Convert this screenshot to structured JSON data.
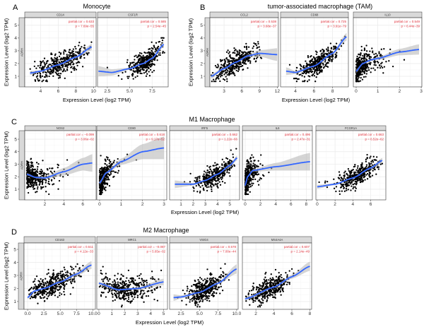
{
  "figure": {
    "x_axis_title": "Expression Level (log2 TPM)",
    "y_axis_title": "Expression Level (log2 TPM)",
    "row_strip_label": "ADRH",
    "colors": {
      "points": "#000000",
      "fit": "#3366ff",
      "ci_band": "#b3b3b3",
      "annotation": "#e0303a",
      "strip": "#d9d9d9"
    }
  },
  "chart_data": [
    {
      "panel_letter": "A",
      "title": "Monocyte",
      "type": "scatter",
      "ylabel": "Expression Level (log2 TPM)",
      "xlabel": "Expression Level (log2 TPM)",
      "ylim": [
        0.17,
        5.6
      ],
      "yticks": [
        1,
        2,
        3,
        4,
        5
      ],
      "grid": true,
      "facets": [
        {
          "gene": "CD14",
          "annotation": [
            "partial.cor = 0.633",
            "p = 7.69e−55"
          ],
          "xlim": [
            2.2,
            10.3
          ],
          "xticks": [
            "4",
            "6",
            "8",
            "10"
          ],
          "scatter": {
            "n": 380,
            "dist": "normal",
            "x_mean": 6.3,
            "x_sd": 1.5,
            "x_min": 2.8,
            "x_max": 9.9,
            "y_sd": 0.45
          },
          "fit": [
            [
              2.8,
              1.25,
              0.15
            ],
            [
              4,
              1.4,
              0.07
            ],
            [
              6,
              1.9,
              0.05
            ],
            [
              8,
              2.5,
              0.07
            ],
            [
              9.8,
              3.3,
              0.25
            ]
          ]
        },
        {
          "gene": "CSF1R",
          "annotation": [
            "partial.cor = 0.585",
            "p = 2.54e−45"
          ],
          "xlim": [
            1.4,
            9.3
          ],
          "xticks": [
            "2.5",
            "5.0",
            "7.5"
          ],
          "scatter": {
            "n": 380,
            "dist": "normal",
            "x_mean": 6.8,
            "x_sd": 0.9,
            "x_min": 1.5,
            "x_max": 8.9,
            "y_sd": 0.4
          },
          "fit": [
            [
              1.5,
              1.4,
              0.4
            ],
            [
              3,
              1.3,
              0.25
            ],
            [
              5,
              1.6,
              0.08
            ],
            [
              6.5,
              2.0,
              0.05
            ],
            [
              7.5,
              2.4,
              0.06
            ],
            [
              8.8,
              3.5,
              0.2
            ]
          ]
        }
      ]
    },
    {
      "panel_letter": "B",
      "title": "tumor-associated macrophage (TAM)",
      "type": "scatter",
      "ylabel": "Expression Level (log2 TPM)",
      "xlabel": "Expression Level (log2 TPM)",
      "ylim": [
        0.17,
        5.6
      ],
      "yticks": [
        1,
        2,
        3,
        4,
        5
      ],
      "grid": true,
      "facets": [
        {
          "gene": "CCL2",
          "annotation": [
            "partial.cor = 0.538",
            "p = 3.68e−37"
          ],
          "xlim": [
            0.6,
            12.2
          ],
          "xticks": [
            "3",
            "6",
            "9",
            "12"
          ],
          "scatter": {
            "n": 380,
            "dist": "normal",
            "x_mean": 5,
            "x_sd": 1.8,
            "x_min": 0.8,
            "x_max": 12,
            "y_sd": 0.45
          },
          "fit": [
            [
              0.8,
              1.0,
              0.2
            ],
            [
              3,
              1.6,
              0.07
            ],
            [
              5,
              2.1,
              0.05
            ],
            [
              7,
              2.6,
              0.08
            ],
            [
              9,
              2.8,
              0.25
            ],
            [
              12,
              2.7,
              0.5
            ]
          ]
        },
        {
          "gene": "CD68",
          "annotation": [
            "partial.cor = 0.725",
            "p = 3.91e−79"
          ],
          "xlim": [
            2.4,
            9.7
          ],
          "xticks": [
            "4",
            "6",
            "8"
          ],
          "scatter": {
            "n": 380,
            "dist": "normal",
            "x_mean": 6.4,
            "x_sd": 1.1,
            "x_min": 3,
            "x_max": 9.5,
            "y_sd": 0.4
          },
          "fit": [
            [
              3,
              1.4,
              0.3
            ],
            [
              4,
              1.3,
              0.12
            ],
            [
              6,
              1.8,
              0.05
            ],
            [
              8,
              2.8,
              0.08
            ],
            [
              9.5,
              4.1,
              0.3
            ]
          ]
        },
        {
          "gene": "IL10",
          "annotation": [
            "partial.cor = 0.549",
            "p = 6.44e−39"
          ],
          "xlim": [
            -0.13,
            3.03
          ],
          "xticks": [
            "0",
            "1",
            "2",
            "3"
          ],
          "scatter": {
            "n": 380,
            "dist": "exp",
            "x_scale": 0.35,
            "x_min": 0,
            "x_max": 2.9,
            "y_sd": 0.5
          },
          "fit": [
            [
              0,
              1.4,
              0.15
            ],
            [
              0.3,
              2.0,
              0.06
            ],
            [
              0.7,
              2.3,
              0.08
            ],
            [
              1,
              2.4,
              0.12
            ],
            [
              2,
              2.9,
              0.25
            ],
            [
              2.9,
              3.1,
              0.4
            ]
          ]
        }
      ]
    },
    {
      "panel_letter": "C",
      "title": "M1 Macrophage",
      "type": "scatter",
      "ylabel": "Expression Level (log2 TPM)",
      "xlabel": "Expression Level (log2 TPM)",
      "ylim": [
        0.15,
        5.68
      ],
      "yticks": [
        1,
        2,
        3,
        4,
        5
      ],
      "grid": true,
      "facets": [
        {
          "gene": "NOS2",
          "annotation": [
            "partial.cor = −0.099",
            "p = 3.06e−02"
          ],
          "xlim": [
            -0.12,
            7.4
          ],
          "xticks": [
            "2",
            "4",
            "6"
          ],
          "scatter": {
            "n": 380,
            "dist": "exp",
            "x_scale": 0.9,
            "x_min": 0.1,
            "x_max": 7,
            "y_sd": 0.5
          },
          "fit": [
            [
              0.1,
              2.2,
              0.1
            ],
            [
              1,
              1.95,
              0.05
            ],
            [
              2,
              1.9,
              0.1
            ],
            [
              4,
              2.4,
              0.3
            ],
            [
              6,
              3.0,
              0.5
            ],
            [
              7,
              3.1,
              0.7
            ]
          ]
        },
        {
          "gene": "CD80",
          "annotation": [
            "partial.cor = 0.618",
            "p = 9.17e−52"
          ],
          "xlim": [
            -0.13,
            3.13
          ],
          "xticks": [
            "0",
            "1",
            "2",
            "3"
          ],
          "scatter": {
            "n": 380,
            "dist": "exp",
            "x_scale": 0.25,
            "x_min": 0,
            "x_max": 3,
            "y_sd": 0.5
          },
          "fit": [
            [
              0,
              1.5,
              0.15
            ],
            [
              0.3,
              2.3,
              0.08
            ],
            [
              1,
              3.2,
              0.25
            ],
            [
              2,
              4.0,
              0.6
            ],
            [
              3,
              4.3,
              0.9
            ]
          ]
        },
        {
          "gene": "IRF5",
          "annotation": [
            "partial.cor = 0.662",
            "p = 1.22e−66"
          ],
          "xlim": [
            0.07,
            5.8
          ],
          "xticks": [
            "1",
            "2",
            "3",
            "4",
            "5"
          ],
          "scatter": {
            "n": 380,
            "dist": "normal",
            "x_mean": 3.8,
            "x_sd": 0.8,
            "x_min": 0.5,
            "x_max": 5.6,
            "y_sd": 0.4
          },
          "fit": [
            [
              0.5,
              1.4,
              0.3
            ],
            [
              2,
              1.4,
              0.1
            ],
            [
              3,
              1.7,
              0.05
            ],
            [
              4,
              2.2,
              0.05
            ],
            [
              5,
              2.9,
              0.1
            ],
            [
              5.6,
              3.5,
              0.2
            ]
          ]
        },
        {
          "gene": "IL6",
          "annotation": [
            "partial.cor = 0.496",
            "p = 2.47e−31"
          ],
          "xlim": [
            -0.37,
            8.8
          ],
          "xticks": [
            "0",
            "2",
            "4",
            "6",
            "8"
          ],
          "scatter": {
            "n": 380,
            "dist": "exp",
            "x_scale": 0.5,
            "x_min": 0,
            "x_max": 8.5,
            "y_sd": 0.55
          },
          "fit": [
            [
              0,
              1.3,
              0.15
            ],
            [
              0.3,
              2.0,
              0.07
            ],
            [
              1,
              2.5,
              0.1
            ],
            [
              4,
              2.8,
              0.3
            ],
            [
              8.5,
              3.2,
              0.7
            ]
          ]
        },
        {
          "gene": "FCGR1A",
          "annotation": [
            "partial.cor = 0.663",
            "p = 6.52e−62"
          ],
          "xlim": [
            -0.15,
            7.7
          ],
          "xticks": [
            "0",
            "2",
            "4",
            "6"
          ],
          "scatter": {
            "n": 380,
            "dist": "normal",
            "x_mean": 4.5,
            "x_sd": 1.2,
            "x_min": 0,
            "x_max": 7.3,
            "y_sd": 0.4
          },
          "fit": [
            [
              0,
              1.2,
              0.15
            ],
            [
              2,
              1.4,
              0.07
            ],
            [
              4,
              1.9,
              0.05
            ],
            [
              6,
              2.7,
              0.07
            ],
            [
              7.3,
              3.3,
              0.2
            ]
          ]
        }
      ]
    },
    {
      "panel_letter": "D",
      "title": "M2 Macrophage",
      "type": "scatter",
      "ylabel": "Expression Level (log2 TPM)",
      "xlabel": "Expression Level (log2 TPM)",
      "ylim": [
        0.4,
        5.49
      ],
      "yticks": [
        1,
        2,
        3,
        4,
        5
      ],
      "grid": true,
      "facets": [
        {
          "gene": "CD163",
          "annotation": [
            "partial.cor = 0.511",
            "p = 4.12e−33"
          ],
          "xlim": [
            -0.55,
            10.4
          ],
          "xticks": [
            "0.0",
            "2.5",
            "5.0",
            "7.5",
            "10.0"
          ],
          "scatter": {
            "n": 380,
            "dist": "normal",
            "x_mean": 3.5,
            "x_sd": 2,
            "x_min": 0,
            "x_max": 9.8,
            "y_sd": 0.45
          },
          "fit": [
            [
              0,
              1.3,
              0.12
            ],
            [
              1,
              1.8,
              0.06
            ],
            [
              2.5,
              2.0,
              0.05
            ],
            [
              5,
              2.5,
              0.07
            ],
            [
              7.5,
              3.1,
              0.15
            ],
            [
              9.8,
              3.8,
              0.3
            ]
          ]
        },
        {
          "gene": "MRC1",
          "annotation": [
            "partial.cor = −0.087",
            "p = 5.65e−02"
          ],
          "xlim": [
            -0.16,
            5.3
          ],
          "xticks": [
            "0",
            "1",
            "2",
            "3",
            "4",
            "5"
          ],
          "scatter": {
            "n": 380,
            "dist": "normal",
            "x_mean": 2,
            "x_sd": 1.2,
            "x_min": 0,
            "x_max": 5,
            "y_sd": 0.5
          },
          "fit": [
            [
              0,
              2.4,
              0.12
            ],
            [
              1.5,
              1.9,
              0.06
            ],
            [
              3,
              2.0,
              0.08
            ],
            [
              5,
              2.5,
              0.25
            ]
          ]
        },
        {
          "gene": "VSIG4",
          "annotation": [
            "partial.cor = 0.578",
            "p = 7.00e−44"
          ],
          "xlim": [
            0.97,
            10.2
          ],
          "xticks": [
            "2.5",
            "5.0",
            "7.5",
            "10.0"
          ],
          "scatter": {
            "n": 380,
            "dist": "normal",
            "x_mean": 5.8,
            "x_sd": 1.3,
            "x_min": 1.5,
            "x_max": 10,
            "y_sd": 0.45
          },
          "fit": [
            [
              1.5,
              1.3,
              0.25
            ],
            [
              2.5,
              1.35,
              0.12
            ],
            [
              5,
              1.7,
              0.05
            ],
            [
              7.5,
              2.4,
              0.08
            ],
            [
              10,
              3.5,
              0.35
            ]
          ]
        },
        {
          "gene": "MS4A4A",
          "annotation": [
            "partial.cor = 0.607",
            "p = 2.14e−49"
          ],
          "xlim": [
            0.5,
            8.2
          ],
          "xticks": [
            "2",
            "4",
            "6",
            "8"
          ],
          "scatter": {
            "n": 380,
            "dist": "normal",
            "x_mean": 3.5,
            "x_sd": 1.1,
            "x_min": 0.8,
            "x_max": 8,
            "y_sd": 0.45
          },
          "fit": [
            [
              0.8,
              1.2,
              0.12
            ],
            [
              4,
              2.1,
              0.05
            ],
            [
              6,
              2.9,
              0.15
            ],
            [
              8,
              3.7,
              0.35
            ]
          ]
        }
      ]
    }
  ]
}
